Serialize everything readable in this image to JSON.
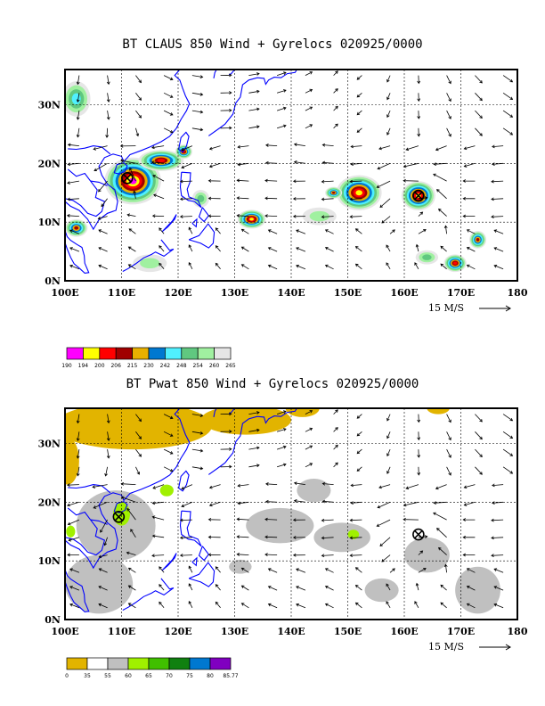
{
  "chart_data": [
    {
      "type": "heatmap",
      "title": "BT CLAUS 850 Wind + Gyrelocs 020925/0000",
      "x_ticks": [
        "100E",
        "110E",
        "120E",
        "130E",
        "140E",
        "150E",
        "160E",
        "170E",
        "180"
      ],
      "y_ticks": [
        "0N",
        "10N",
        "20N",
        "30N"
      ],
      "xlim": [
        100,
        180
      ],
      "ylim": [
        0,
        36
      ],
      "grid": true,
      "reference_vector": "15 M/S",
      "colorbar": {
        "levels": [
          "190",
          "194",
          "200",
          "206",
          "215",
          "230",
          "242",
          "248",
          "254",
          "260",
          "265"
        ],
        "colors": [
          "#ff00ff",
          "#ffff00",
          "#ff0000",
          "#a00000",
          "#e8b000",
          "#0078d0",
          "#50f0ff",
          "#60c880",
          "#a0f0a0",
          "#e6e6e6"
        ]
      },
      "gyre_markers": [
        [
          111,
          17.5
        ],
        [
          162.5,
          14.5
        ]
      ],
      "features": [
        {
          "name": "convective-cluster",
          "lon": 112,
          "lat": 17,
          "level_min": 190,
          "rx": 5,
          "ry": 4
        },
        {
          "name": "convective-cluster",
          "lon": 117,
          "lat": 20.5,
          "level_min": 200,
          "rx": 4,
          "ry": 1.8
        },
        {
          "name": "convective-cluster",
          "lon": 121,
          "lat": 22,
          "level_min": 200,
          "rx": 1.5,
          "ry": 1.2
        },
        {
          "name": "convective-cluster",
          "lon": 102,
          "lat": 9,
          "level_min": 206,
          "rx": 2,
          "ry": 1.5
        },
        {
          "name": "convective-cluster",
          "lon": 133,
          "lat": 10.5,
          "level_min": 194,
          "rx": 2.5,
          "ry": 1.6
        },
        {
          "name": "convective-cluster",
          "lon": 152,
          "lat": 15,
          "level_min": 194,
          "rx": 4,
          "ry": 3
        },
        {
          "name": "convective-cluster",
          "lon": 147.5,
          "lat": 15,
          "level_min": 206,
          "rx": 1.5,
          "ry": 1
        },
        {
          "name": "convective-cluster",
          "lon": 162.5,
          "lat": 14.5,
          "level_min": 194,
          "rx": 3,
          "ry": 2.5
        },
        {
          "name": "convective-cluster",
          "lon": 169,
          "lat": 3,
          "level_min": 200,
          "rx": 2,
          "ry": 1.5
        },
        {
          "name": "convective-cluster",
          "lon": 173,
          "lat": 7,
          "level_min": 206,
          "rx": 1.5,
          "ry": 1.5
        },
        {
          "name": "cloud",
          "lon": 102,
          "lat": 31,
          "level_min": 242,
          "rx": 2.5,
          "ry": 3
        },
        {
          "name": "cloud",
          "lon": 124,
          "lat": 14,
          "level_min": 248,
          "rx": 1.5,
          "ry": 1.5
        },
        {
          "name": "cloud",
          "lon": 145,
          "lat": 11,
          "level_min": 254,
          "rx": 3,
          "ry": 1.5
        },
        {
          "name": "cloud",
          "lon": 164,
          "lat": 4,
          "level_min": 248,
          "rx": 2,
          "ry": 1.2
        },
        {
          "name": "cloud",
          "lon": 115,
          "lat": 3,
          "level_min": 254,
          "rx": 3,
          "ry": 1.5
        }
      ]
    },
    {
      "type": "heatmap",
      "title": "BT Pwat 850 Wind + Gyrelocs 020925/0000",
      "x_ticks": [
        "100E",
        "110E",
        "120E",
        "130E",
        "140E",
        "150E",
        "160E",
        "170E",
        "180"
      ],
      "y_ticks": [
        "0N",
        "10N",
        "20N",
        "30N"
      ],
      "xlim": [
        100,
        180
      ],
      "ylim": [
        0,
        36
      ],
      "grid": true,
      "reference_vector": "15 M/S",
      "colorbar": {
        "levels": [
          "0",
          "35",
          "55",
          "60",
          "65",
          "70",
          "75",
          "80",
          "85.77"
        ],
        "colors": [
          "#e2b400",
          "#ffffff",
          "#c0c0c0",
          "#a0f000",
          "#40c000",
          "#108010",
          "#0078d0",
          "#8000c0"
        ]
      },
      "gyre_markers": [
        [
          109.5,
          17.5
        ],
        [
          162.5,
          14.5
        ]
      ],
      "features": [
        {
          "name": "dry-region",
          "lon": 112,
          "lat": 33,
          "level": "0-35",
          "rx": 14,
          "ry": 4
        },
        {
          "name": "dry-region",
          "lon": 132,
          "lat": 34,
          "level": "0-35",
          "rx": 8,
          "ry": 2.5
        },
        {
          "name": "dry-region",
          "lon": 100.5,
          "lat": 27,
          "level": "0-35",
          "rx": 2,
          "ry": 4
        },
        {
          "name": "dry-region",
          "lon": 142,
          "lat": 36,
          "level": "0-35",
          "rx": 3,
          "ry": 1.5
        },
        {
          "name": "dry-region",
          "lon": 166,
          "lat": 36,
          "level": "0-35",
          "rx": 2,
          "ry": 1
        },
        {
          "name": "moist-region",
          "lon": 109,
          "lat": 16,
          "level": "55-60",
          "rx": 7,
          "ry": 6
        },
        {
          "name": "moist-region",
          "lon": 106,
          "lat": 6,
          "level": "55-60",
          "rx": 6,
          "ry": 5
        },
        {
          "name": "moist-region",
          "lon": 138,
          "lat": 16,
          "level": "55-60",
          "rx": 6,
          "ry": 3
        },
        {
          "name": "moist-region",
          "lon": 149,
          "lat": 14,
          "level": "55-60",
          "rx": 5,
          "ry": 2.5
        },
        {
          "name": "moist-region",
          "lon": 164,
          "lat": 11,
          "level": "55-60",
          "rx": 4,
          "ry": 3
        },
        {
          "name": "moist-region",
          "lon": 173,
          "lat": 5,
          "level": "55-60",
          "rx": 4,
          "ry": 4
        },
        {
          "name": "moist-region",
          "lon": 144,
          "lat": 22,
          "level": "55-60",
          "rx": 3,
          "ry": 2
        },
        {
          "name": "moist-region",
          "lon": 156,
          "lat": 5,
          "level": "55-60",
          "rx": 3,
          "ry": 2
        },
        {
          "name": "moist-region",
          "lon": 131,
          "lat": 9,
          "level": "55-60",
          "rx": 2,
          "ry": 1.2
        },
        {
          "name": "very-moist",
          "lon": 110,
          "lat": 18,
          "level": "60-65",
          "rx": 1.5,
          "ry": 2
        },
        {
          "name": "very-moist",
          "lon": 118,
          "lat": 22,
          "level": "60-65",
          "rx": 1.2,
          "ry": 1
        },
        {
          "name": "very-moist",
          "lon": 101,
          "lat": 15,
          "level": "60-65",
          "rx": 0.8,
          "ry": 1
        },
        {
          "name": "very-moist",
          "lon": 151,
          "lat": 14.5,
          "level": "60-65",
          "rx": 1,
          "ry": 0.8
        }
      ]
    }
  ]
}
